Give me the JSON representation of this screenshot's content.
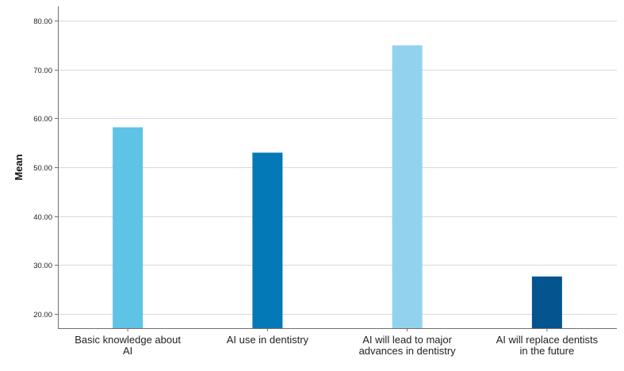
{
  "chart_data": {
    "type": "bar",
    "categories": [
      [
        "Basic knowledge about",
        "AI"
      ],
      [
        "AI use in dentistry"
      ],
      [
        "AI will lead to major",
        "advances in dentistry"
      ],
      [
        "AI will replace dentists",
        "in the future"
      ]
    ],
    "values": [
      58.2,
      53.0,
      75.0,
      27.6
    ],
    "bar_colors": [
      "#5fc3e6",
      "#0479b7",
      "#93d2ee",
      "#04548f"
    ],
    "ylabel": "Mean",
    "xlabel": "",
    "ylim": [
      17,
      83
    ],
    "yticks": [
      20,
      30,
      40,
      50,
      60,
      70,
      80
    ],
    "ytick_labels": [
      "20.00",
      "30.00",
      "40.00",
      "50.00",
      "60.00",
      "70.00",
      "80.00"
    ],
    "grid": "horizontal",
    "gridline_color": "#d9d9d9",
    "legend": "none"
  }
}
